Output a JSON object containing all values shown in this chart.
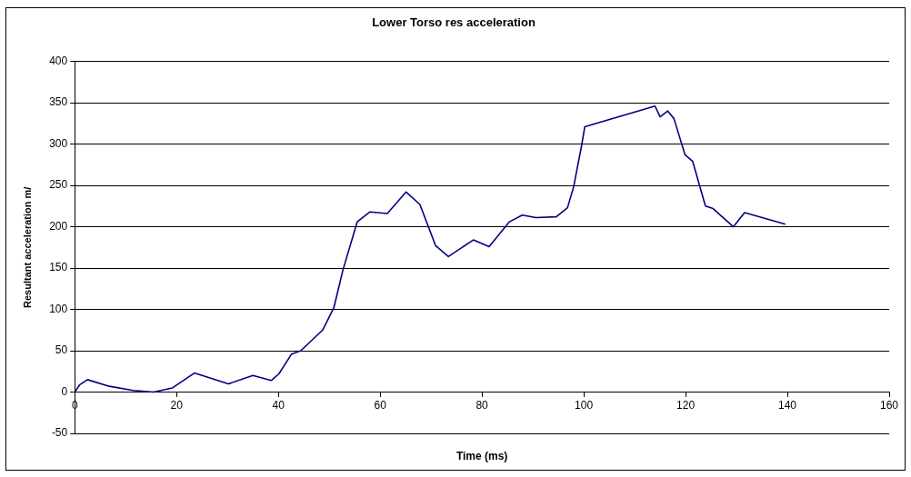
{
  "chart_data": {
    "type": "line",
    "title": "Lower Torso res acceleration",
    "xlabel": "Time (ms)",
    "ylabel": "Resultant acceleration m/",
    "x": [
      0,
      1.0,
      2.5,
      6.8,
      11.5,
      15.5,
      19.2,
      23.5,
      30.2,
      35,
      38.6,
      40.1,
      42.6,
      44.4,
      48.7,
      50.9,
      52.7,
      55.5,
      58,
      61.4,
      65.1,
      67.8,
      70.9,
      73.4,
      78.3,
      81.4,
      85.4,
      87.9,
      90.6,
      94.6,
      96.8,
      98,
      99.6,
      100.2,
      114,
      115,
      116.5,
      117.7,
      119.9,
      121.4,
      123.9,
      125.4,
      129.4,
      131.6,
      139.6
    ],
    "series": [
      {
        "color": "#000080",
        "values": [
          0,
          9,
          15,
          7,
          2,
          0,
          5,
          23,
          10,
          20,
          14,
          22,
          46,
          50,
          75,
          102,
          148,
          206,
          218,
          216,
          242,
          227,
          177,
          164,
          184,
          176,
          206,
          214,
          211,
          212,
          223,
          248,
          299,
          321,
          346,
          333,
          340,
          331,
          287,
          279,
          225,
          222,
          200,
          217,
          203
        ]
      }
    ],
    "xlim": [
      0,
      160
    ],
    "xticks": [
      0,
      20,
      40,
      60,
      80,
      100,
      120,
      140,
      160
    ],
    "ylim": [
      -50,
      400
    ],
    "yticks": [
      -50,
      0,
      50,
      100,
      150,
      200,
      250,
      300,
      350,
      400
    ],
    "grid": "y",
    "legend": false,
    "marker": "none",
    "line_style": "solid"
  }
}
